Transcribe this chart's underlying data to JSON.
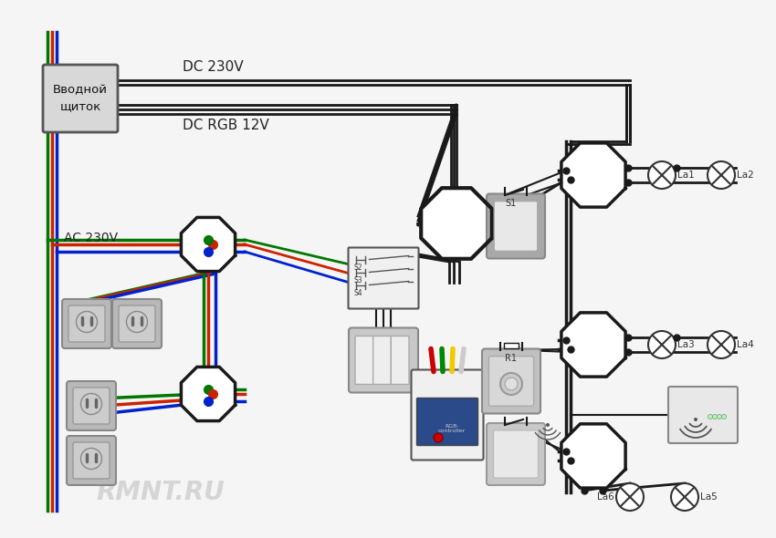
{
  "bg_color": "#f5f5f5",
  "wire_colors": {
    "black": "#1a1a1a",
    "red": "#cc2200",
    "blue": "#0022cc",
    "green": "#007700"
  },
  "labels": {
    "panel": "Вводной\nщиток",
    "dc230": "DC 230V",
    "dcrgb": "DC RGB 12V",
    "ac230": "AC 230V",
    "s1": "S1",
    "r1": "R1",
    "la1": "La1",
    "la2": "La2",
    "la3": "La3",
    "la4": "La4",
    "la5": "La5",
    "la6": "La6",
    "rmnt": "RMNT.RU"
  },
  "figsize": [
    8.5,
    5.9
  ],
  "dpi": 100
}
